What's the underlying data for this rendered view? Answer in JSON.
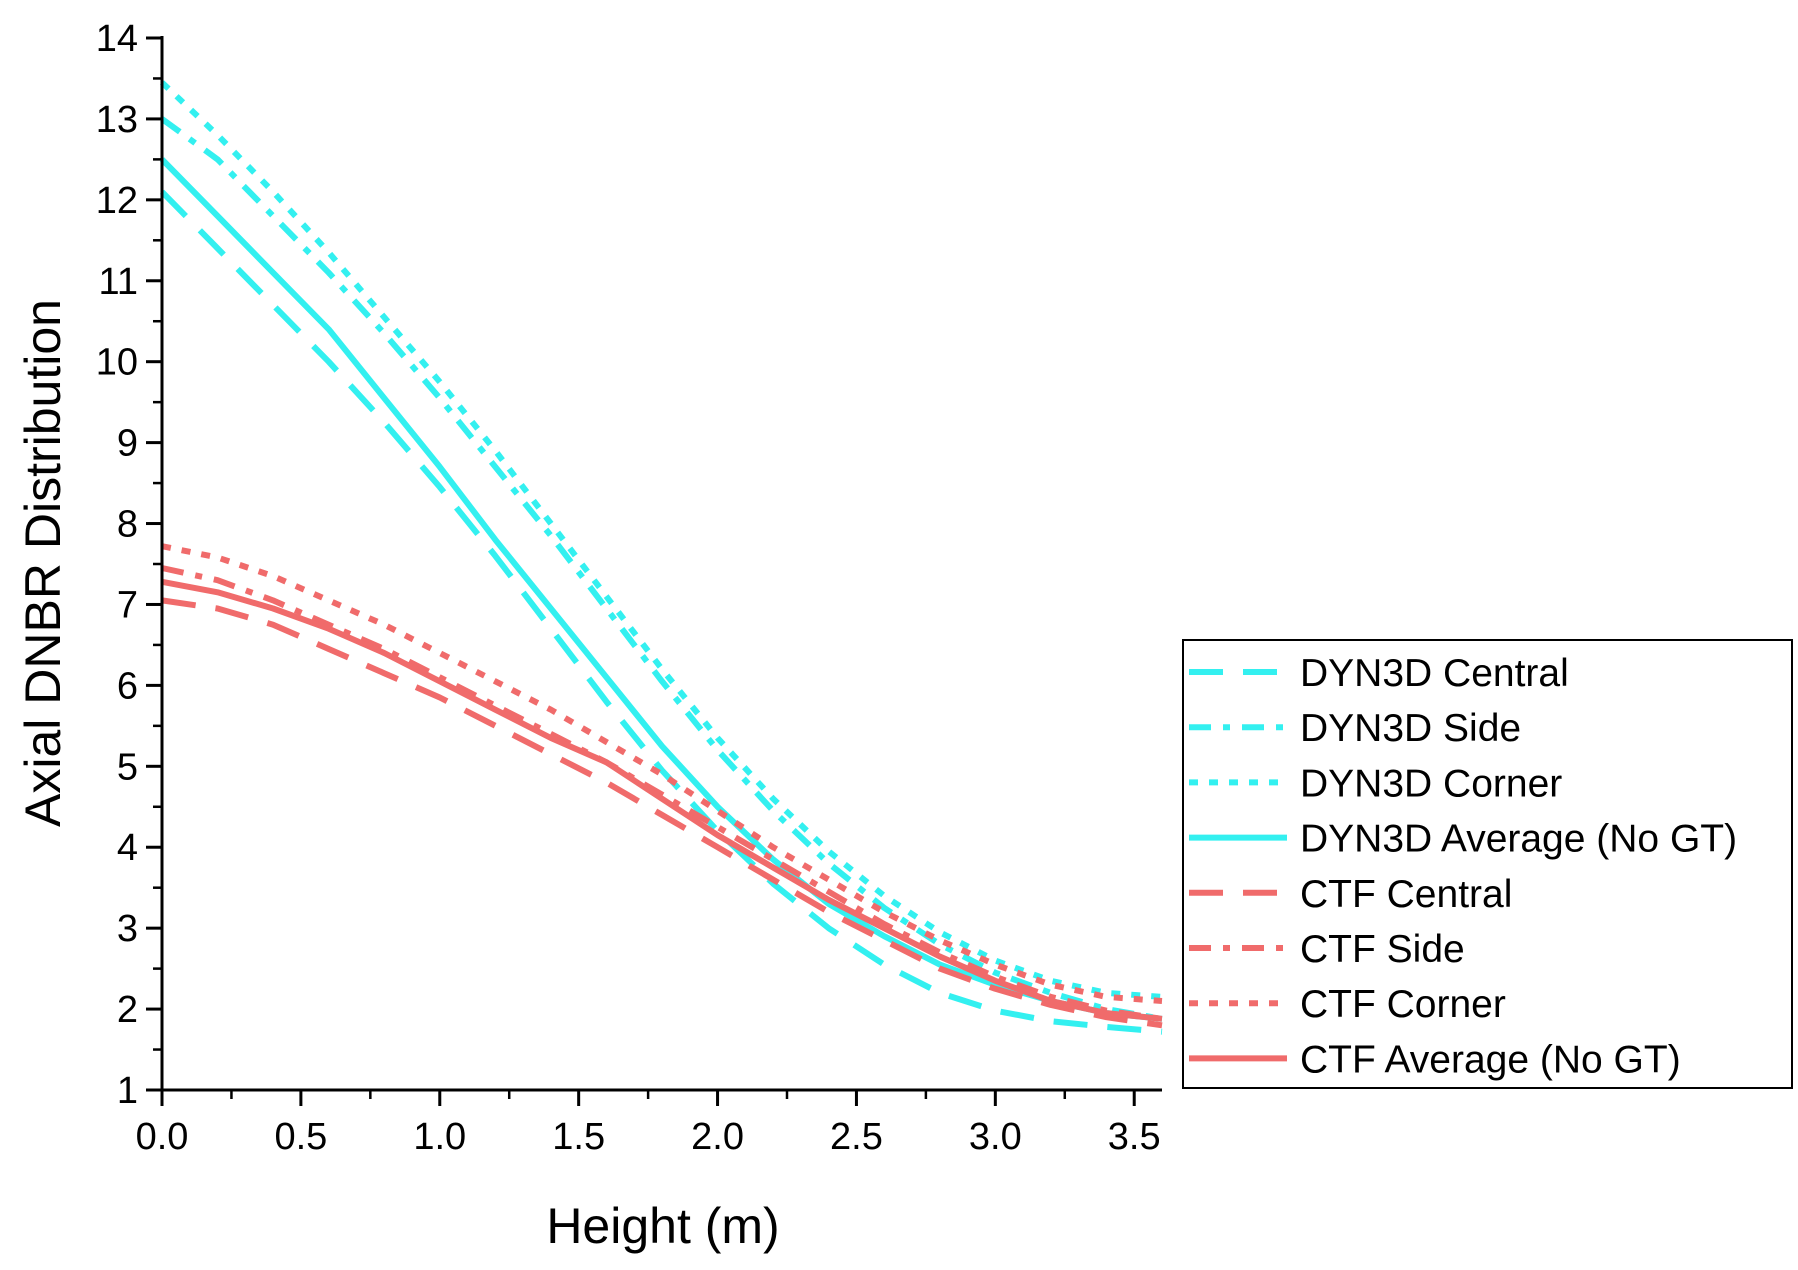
{
  "chart_data": {
    "type": "line",
    "title": "",
    "xlabel": "Height (m)",
    "ylabel": "Axial DNBR Distribution",
    "xlim": [
      0,
      3.6
    ],
    "ylim": [
      1,
      14
    ],
    "x_ticks": [
      0.0,
      0.5,
      1.0,
      1.5,
      2.0,
      2.5,
      3.0,
      3.5
    ],
    "x_tick_labels": [
      "0.0",
      "0.5",
      "1.0",
      "1.5",
      "2.0",
      "2.5",
      "3.0",
      "3.5"
    ],
    "y_ticks": [
      1,
      2,
      3,
      4,
      5,
      6,
      7,
      8,
      9,
      10,
      11,
      12,
      13,
      14
    ],
    "y_tick_labels": [
      "1",
      "2",
      "3",
      "4",
      "5",
      "6",
      "7",
      "8",
      "9",
      "10",
      "11",
      "12",
      "13",
      "14"
    ],
    "grid": false,
    "legend_position": "right",
    "x": [
      0.0,
      0.2,
      0.4,
      0.6,
      0.8,
      1.0,
      1.2,
      1.4,
      1.6,
      1.8,
      2.0,
      2.2,
      2.4,
      2.6,
      2.8,
      3.0,
      3.2,
      3.4,
      3.6
    ],
    "series": [
      {
        "name": "DYN3D Central",
        "color": "#33f0f0",
        "style": "dash",
        "values": [
          12.1,
          11.4,
          10.7,
          10.0,
          9.25,
          8.45,
          7.6,
          6.7,
          5.8,
          4.95,
          4.2,
          3.55,
          3.0,
          2.55,
          2.2,
          1.98,
          1.85,
          1.78,
          1.72
        ]
      },
      {
        "name": "DYN3D Side",
        "color": "#33f0f0",
        "style": "dashdot",
        "values": [
          13.0,
          12.5,
          11.8,
          11.1,
          10.35,
          9.55,
          8.7,
          7.85,
          6.95,
          6.05,
          5.2,
          4.45,
          3.8,
          3.25,
          2.8,
          2.45,
          2.2,
          2.0,
          1.88
        ]
      },
      {
        "name": "DYN3D Corner",
        "color": "#33f0f0",
        "style": "dot",
        "values": [
          13.45,
          12.8,
          12.1,
          11.35,
          10.55,
          9.75,
          8.9,
          8.0,
          7.1,
          6.2,
          5.35,
          4.6,
          3.95,
          3.4,
          2.95,
          2.6,
          2.35,
          2.2,
          2.15
        ]
      },
      {
        "name": "DYN3D Average (No GT)",
        "color": "#33f0f0",
        "style": "solid",
        "values": [
          12.5,
          11.8,
          11.1,
          10.4,
          9.55,
          8.7,
          7.8,
          6.95,
          6.1,
          5.25,
          4.5,
          3.85,
          3.3,
          2.9,
          2.55,
          2.3,
          2.1,
          1.95,
          1.88
        ]
      },
      {
        "name": "CTF Central",
        "color": "#f06b6b",
        "style": "dash",
        "values": [
          7.05,
          6.95,
          6.75,
          6.45,
          6.15,
          5.85,
          5.5,
          5.15,
          4.8,
          4.4,
          4.0,
          3.6,
          3.2,
          2.85,
          2.5,
          2.25,
          2.05,
          1.9,
          1.8
        ]
      },
      {
        "name": "CTF Side",
        "color": "#f06b6b",
        "style": "dashdot",
        "values": [
          7.45,
          7.3,
          7.05,
          6.75,
          6.45,
          6.1,
          5.75,
          5.4,
          5.05,
          4.65,
          4.25,
          3.85,
          3.45,
          3.05,
          2.7,
          2.4,
          2.15,
          1.98,
          1.88
        ]
      },
      {
        "name": "CTF Corner",
        "color": "#f06b6b",
        "style": "dot",
        "values": [
          7.72,
          7.58,
          7.35,
          7.05,
          6.75,
          6.4,
          6.05,
          5.7,
          5.3,
          4.9,
          4.45,
          4.0,
          3.6,
          3.2,
          2.85,
          2.55,
          2.3,
          2.15,
          2.1
        ]
      },
      {
        "name": "CTF Average (No GT)",
        "color": "#f06b6b",
        "style": "solid",
        "values": [
          7.28,
          7.15,
          6.95,
          6.7,
          6.4,
          6.05,
          5.7,
          5.35,
          5.05,
          4.6,
          4.15,
          3.75,
          3.35,
          3.0,
          2.65,
          2.35,
          2.1,
          1.95,
          1.88
        ]
      }
    ]
  }
}
